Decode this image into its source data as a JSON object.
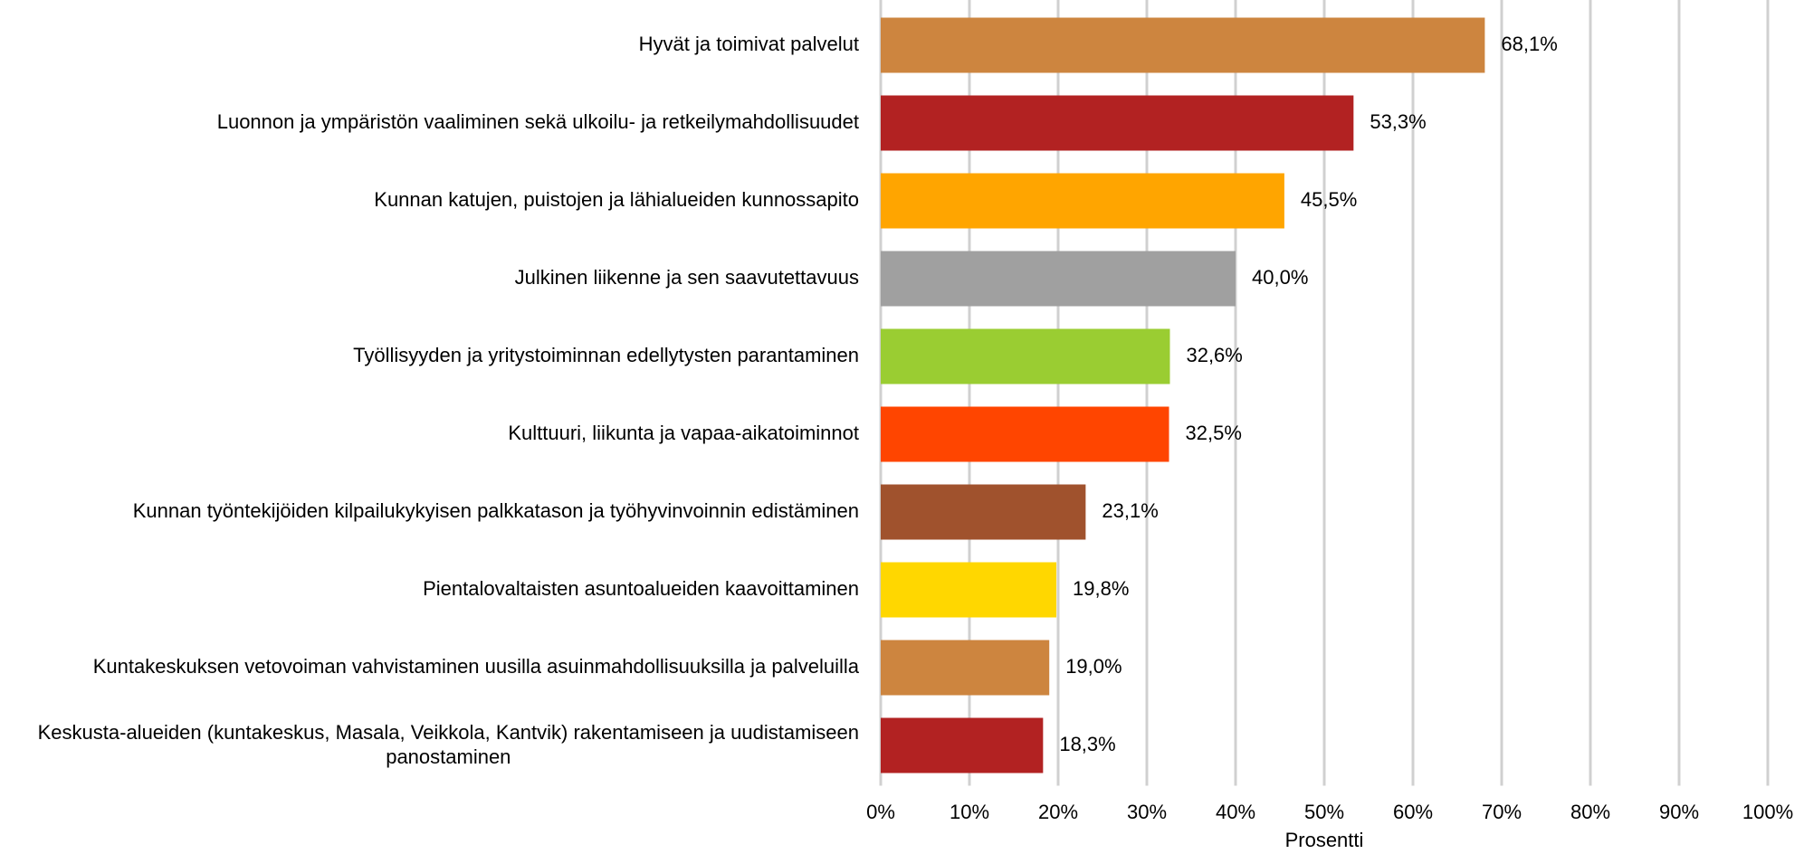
{
  "chart_data": {
    "type": "hbar",
    "categories": [
      "Hyvät ja toimivat palvelut",
      "Luonnon ja ympäristön vaaliminen sekä ulkoilu- ja retkeilymahdollisuudet",
      "Kunnan katujen, puistojen ja lähialueiden kunnossapito",
      "Julkinen liikenne ja sen saavutettavuus",
      "Työllisyyden ja yritystoiminnan edellytysten parantaminen",
      "Kulttuuri, liikunta ja vapaa-aikatoiminnot",
      "Kunnan työntekijöiden kilpailukykyisen palkkatason ja työhyvinvoinnin edistäminen",
      "Pientalovaltaisten asuntoalueiden kaavoittaminen",
      "Kuntakeskuksen vetovoiman vahvistaminen uusilla asuinmahdollisuuksilla ja palveluilla",
      "Keskusta-alueiden (kuntakeskus, Masala, Veikkola, Kantvik) rakentamiseen ja uudistamiseen panostaminen"
    ],
    "values": [
      68.1,
      53.3,
      45.5,
      40.0,
      32.6,
      32.5,
      23.1,
      19.8,
      19.0,
      18.3
    ],
    "value_labels": [
      "68,1%",
      "53,3%",
      "45,5%",
      "40,0%",
      "32,6%",
      "32,5%",
      "23,1%",
      "19,8%",
      "19,0%",
      "18,3%"
    ],
    "colors": [
      "#cd853f",
      "#b22222",
      "#ffa500",
      "#a0a0a0",
      "#9acd32",
      "#ff4500",
      "#a0522d",
      "#ffd700",
      "#cd853f",
      "#b22222"
    ],
    "xlabel": "Prosentti",
    "xlim": [
      0,
      100
    ],
    "xticks": [
      {
        "value": 0,
        "label": "0%"
      },
      {
        "value": 10,
        "label": "10%"
      },
      {
        "value": 20,
        "label": "20%"
      },
      {
        "value": 30,
        "label": "30%"
      },
      {
        "value": 40,
        "label": "40%"
      },
      {
        "value": 50,
        "label": "50%"
      },
      {
        "value": 60,
        "label": "60%"
      },
      {
        "value": 70,
        "label": "70%"
      },
      {
        "value": 80,
        "label": "80%"
      },
      {
        "value": 90,
        "label": "90%"
      },
      {
        "value": 100,
        "label": "100%"
      }
    ],
    "grid": true
  }
}
